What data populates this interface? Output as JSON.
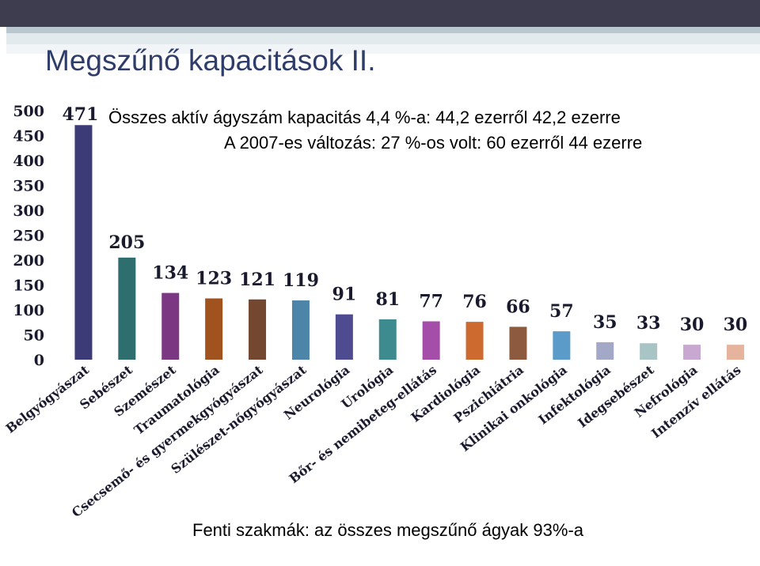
{
  "slide": {
    "title": "Megszűnő kapacitások II.",
    "annotation_line1": "Összes aktív ágyszám kapacitás 4,4 %-a: 44,2 ezerről 42,2 ezerre",
    "annotation_line2": "A 2007-es változás: 27 %-os volt: 60 ezerről 44 ezerre",
    "footer_note": "Fenti szakmák: az összes megszűnő ágyak 93%-a"
  },
  "chart_data": {
    "type": "bar",
    "title": "",
    "xlabel": "",
    "ylabel": "",
    "ylim": [
      0,
      500
    ],
    "yticks": [
      0,
      50,
      100,
      150,
      200,
      250,
      300,
      350,
      400,
      450,
      500
    ],
    "grid": false,
    "legend": "none",
    "categories": [
      "Belgyógyászat",
      "Sebészet",
      "Szemészet",
      "Traumatológia",
      "Csecsemő- és gyermekgyógyászat",
      "Szülészet-nőgyógyászat",
      "Neurológia",
      "Urológia",
      "Bőr- és nemibeteg-ellátás",
      "Kardiológia",
      "Pszichiátria",
      "Klinikai onkológia",
      "Infektológia",
      "Idegsebészet",
      "Nefrológia",
      "Intenzív ellátás"
    ],
    "values": [
      471,
      205,
      134,
      123,
      121,
      119,
      91,
      81,
      77,
      76,
      66,
      57,
      35,
      33,
      30,
      30
    ],
    "colors": [
      "#3d3a78",
      "#2f6e6e",
      "#7b3782",
      "#a0521f",
      "#744731",
      "#4d85a8",
      "#4f4b90",
      "#3e8b8f",
      "#a44ea9",
      "#cc6a30",
      "#8c5a3e",
      "#5b9bc9",
      "#a3a8c7",
      "#a8c4c4",
      "#c8a8d0",
      "#e6b49c"
    ]
  }
}
